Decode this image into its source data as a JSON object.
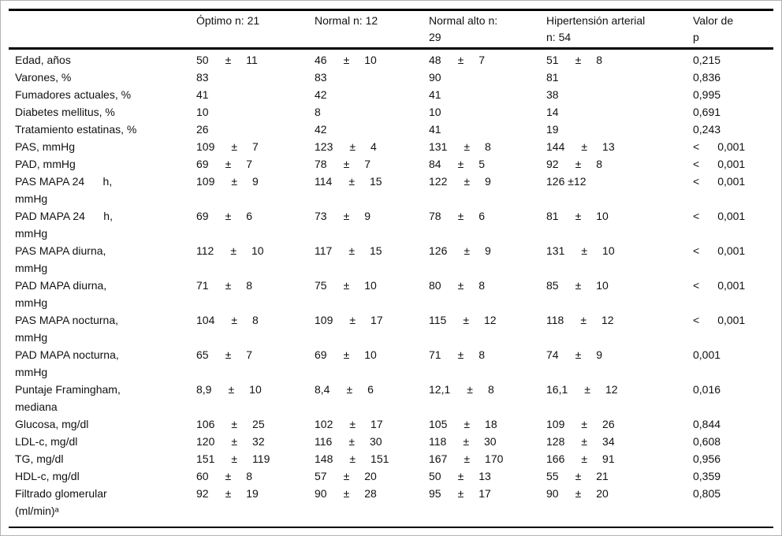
{
  "table": {
    "columns": [
      "",
      "Óptimo n: 21",
      "Normal n: 12",
      "Normal alto n:\n29",
      "Hipertensión arterial\nn: 54",
      "Valor de\np"
    ],
    "rows": [
      {
        "label": "Edad, años",
        "cells": [
          [
            "50",
            "±",
            "11"
          ],
          [
            "46",
            "±",
            "10"
          ],
          [
            "48",
            "±",
            "7"
          ],
          [
            "51",
            "±",
            "8"
          ]
        ],
        "p": [
          "0,215"
        ]
      },
      {
        "label": "Varones, %",
        "cells": [
          [
            "83"
          ],
          [
            "83"
          ],
          [
            "90"
          ],
          [
            "81"
          ]
        ],
        "p": [
          "0,836"
        ]
      },
      {
        "label": "Fumadores actuales, %",
        "cells": [
          [
            "41"
          ],
          [
            "42"
          ],
          [
            "41"
          ],
          [
            "38"
          ]
        ],
        "p": [
          "0,995"
        ]
      },
      {
        "label": "Diabetes mellitus, %",
        "cells": [
          [
            "10"
          ],
          [
            "8"
          ],
          [
            "10"
          ],
          [
            "14"
          ]
        ],
        "p": [
          "0,691"
        ]
      },
      {
        "label": "Tratamiento estatinas, %",
        "cells": [
          [
            "26"
          ],
          [
            "42"
          ],
          [
            "41"
          ],
          [
            "19"
          ]
        ],
        "p": [
          "0,243"
        ]
      },
      {
        "label": "PAS, mmHg",
        "cells": [
          [
            "109",
            "±",
            "7"
          ],
          [
            "123",
            "±",
            "4"
          ],
          [
            "131",
            "±",
            "8"
          ],
          [
            "144",
            "±",
            "13"
          ]
        ],
        "p": [
          "<",
          "0,001"
        ]
      },
      {
        "label": "PAD, mmHg",
        "cells": [
          [
            "69",
            "±",
            "7"
          ],
          [
            "78",
            "±",
            "7"
          ],
          [
            "84",
            "±",
            "5"
          ],
          [
            "92",
            "±",
            "8"
          ]
        ],
        "p": [
          "<",
          "0,001"
        ]
      },
      {
        "label": "PAS MAPA 24      h,\nmmHg",
        "cells": [
          [
            "109",
            "±",
            "9"
          ],
          [
            "114",
            "±",
            "15"
          ],
          [
            "122",
            "±",
            "9"
          ],
          [
            "126 ±12"
          ]
        ],
        "p": [
          "<",
          "0,001"
        ]
      },
      {
        "label": "PAD MAPA 24      h,\nmmHg",
        "cells": [
          [
            "69",
            "±",
            "6"
          ],
          [
            "73",
            "±",
            "9"
          ],
          [
            "78",
            "±",
            "6"
          ],
          [
            "81",
            "±",
            "10"
          ]
        ],
        "p": [
          "<",
          "0,001"
        ]
      },
      {
        "label": "PAS MAPA diurna,\nmmHg",
        "cells": [
          [
            "112",
            "±",
            "10"
          ],
          [
            "117",
            "±",
            "15"
          ],
          [
            "126",
            "±",
            "9"
          ],
          [
            "131",
            "±",
            "10"
          ]
        ],
        "p": [
          "<",
          "0,001"
        ]
      },
      {
        "label": "PAD MAPA diurna,\nmmHg",
        "cells": [
          [
            "71",
            "±",
            "8"
          ],
          [
            "75",
            "±",
            "10"
          ],
          [
            "80",
            "±",
            "8"
          ],
          [
            "85",
            "±",
            "10"
          ]
        ],
        "p": [
          "<",
          "0,001"
        ]
      },
      {
        "label": "PAS MAPA nocturna,\nmmHg",
        "cells": [
          [
            "104",
            "±",
            "8"
          ],
          [
            "109",
            "±",
            "17"
          ],
          [
            "115",
            "±",
            "12"
          ],
          [
            "118",
            "±",
            "12"
          ]
        ],
        "p": [
          "<",
          "0,001"
        ]
      },
      {
        "label": "PAD MAPA nocturna,\nmmHg",
        "cells": [
          [
            "65",
            "±",
            "7"
          ],
          [
            "69",
            "±",
            "10"
          ],
          [
            "71",
            "±",
            "8"
          ],
          [
            "74",
            "±",
            "9"
          ]
        ],
        "p": [
          "0,001"
        ]
      },
      {
        "label": "Puntaje Framingham,\nmediana",
        "cells": [
          [
            "8,9",
            "±",
            "10"
          ],
          [
            "8,4",
            "±",
            "6"
          ],
          [
            "12,1",
            "±",
            "8"
          ],
          [
            "16,1",
            "±",
            "12"
          ]
        ],
        "p": [
          "0,016"
        ]
      },
      {
        "label": "Glucosa, mg/dl",
        "cells": [
          [
            "106",
            "±",
            "25"
          ],
          [
            "102",
            "±",
            "17"
          ],
          [
            "105",
            "±",
            "18"
          ],
          [
            "109",
            "±",
            "26"
          ]
        ],
        "p": [
          "0,844"
        ]
      },
      {
        "label": "LDL-c, mg/dl",
        "cells": [
          [
            "120",
            "±",
            "32"
          ],
          [
            "116",
            "±",
            "30"
          ],
          [
            "118",
            "±",
            "30"
          ],
          [
            "128",
            "±",
            "34"
          ]
        ],
        "p": [
          "0,608"
        ]
      },
      {
        "label": "TG, mg/dl",
        "cells": [
          [
            "151",
            "±",
            "119"
          ],
          [
            "148",
            "±",
            "151"
          ],
          [
            "167",
            "±",
            "170"
          ],
          [
            "166",
            "±",
            "91"
          ]
        ],
        "p": [
          "0,956"
        ]
      },
      {
        "label": "HDL-c, mg/dl",
        "cells": [
          [
            "60",
            "±",
            "8"
          ],
          [
            "57",
            "±",
            "20"
          ],
          [
            "50",
            "±",
            "13"
          ],
          [
            "55",
            "±",
            "21"
          ]
        ],
        "p": [
          "0,359"
        ]
      },
      {
        "label": "Filtrado glomerular\n(ml/min)ᵃ",
        "cells": [
          [
            "92",
            "±",
            "19"
          ],
          [
            "90",
            "±",
            "28"
          ],
          [
            "95",
            "±",
            "17"
          ],
          [
            "90",
            "±",
            "20"
          ]
        ],
        "p": [
          "0,805"
        ]
      }
    ]
  }
}
